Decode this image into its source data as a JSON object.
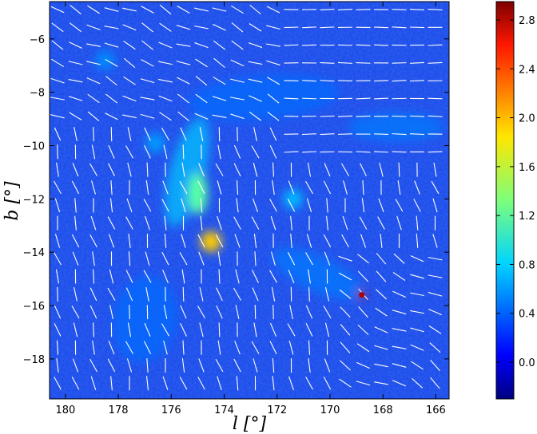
{
  "chart_data": {
    "type": "heatmap",
    "xlabel": "l [°]",
    "ylabel": "b [°]",
    "x_ticks": [
      180,
      178,
      176,
      174,
      172,
      170,
      168,
      166
    ],
    "y_ticks": [
      -6,
      -8,
      -10,
      -12,
      -14,
      -16,
      -18
    ],
    "xlim": [
      180.6,
      165.5
    ],
    "ylim": [
      -19.5,
      -4.6
    ],
    "colorbar": {
      "colormap": "jet",
      "ticks": [
        0.0,
        0.4,
        0.8,
        1.2,
        1.6,
        2.0,
        2.4,
        2.8
      ],
      "range": [
        -0.3,
        2.95
      ]
    },
    "overlay": "polarization-vectors",
    "vector_color": "#ffffff",
    "features": [
      {
        "l": 175.0,
        "b": -11.8,
        "peak": 1.2
      },
      {
        "l": 174.5,
        "b": -13.6,
        "peak": 1.9
      },
      {
        "l": 168.8,
        "b": -15.6,
        "peak": 2.8
      },
      {
        "l": 171.4,
        "b": -12.0,
        "peak": 0.7
      },
      {
        "l": 176.6,
        "b": -9.9,
        "peak": 0.6
      },
      {
        "l": 178.5,
        "b": -6.8,
        "peak": 0.55
      }
    ]
  }
}
